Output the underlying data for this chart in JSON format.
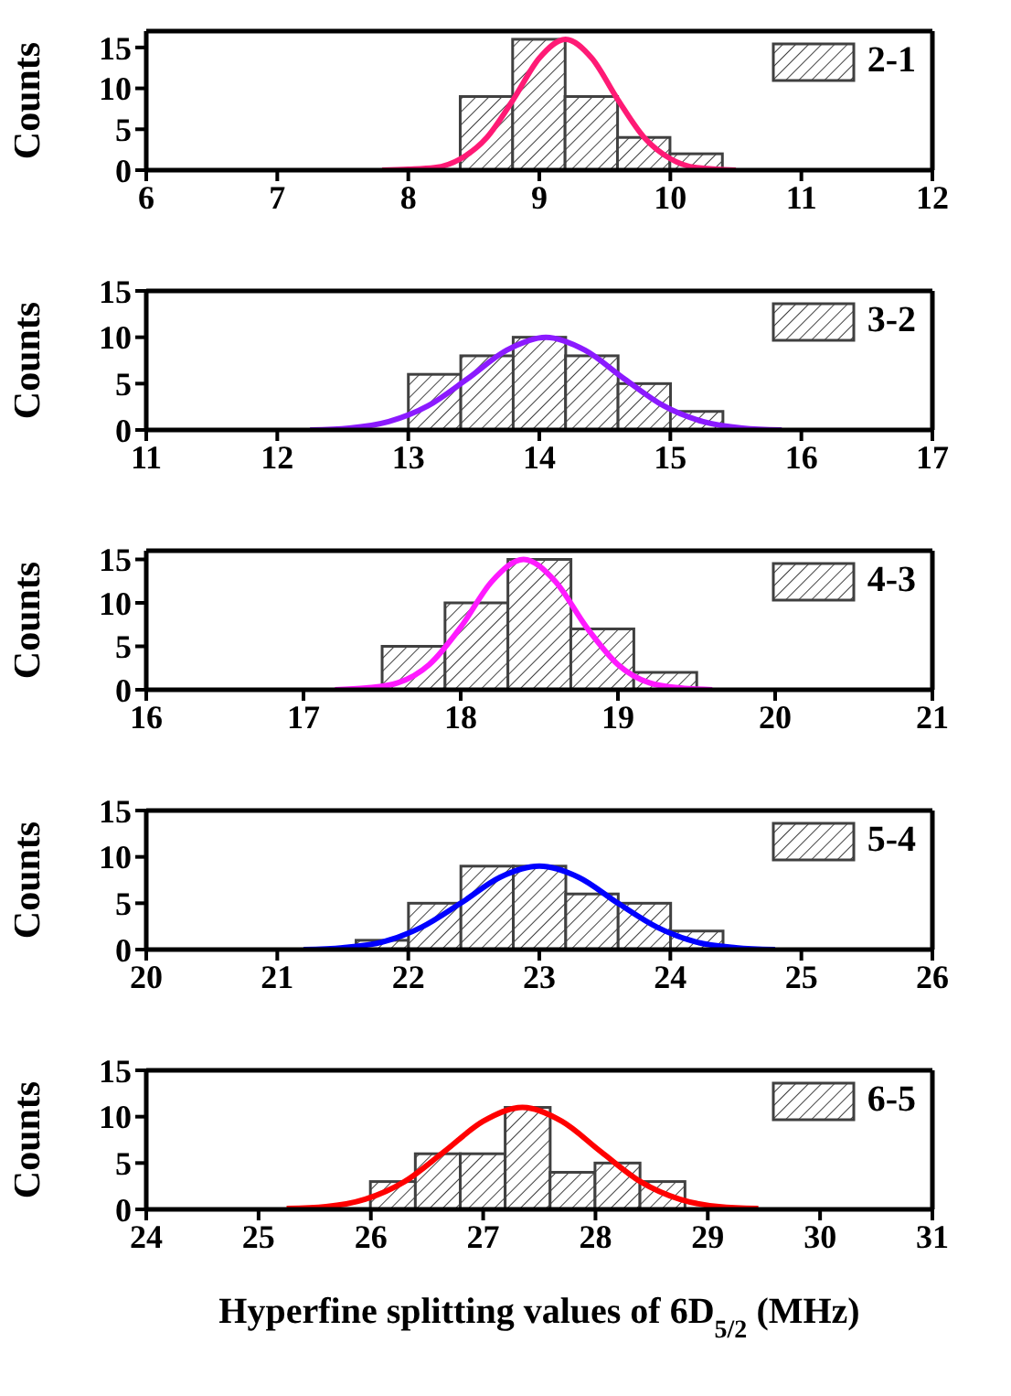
{
  "chart_data": [
    {
      "type": "histogram",
      "ylabel": "Counts",
      "xlim": [
        6,
        12
      ],
      "xticks": [
        6,
        7,
        8,
        9,
        10,
        11,
        12
      ],
      "ylim": [
        0,
        17
      ],
      "yticks": [
        0,
        5,
        10,
        15
      ],
      "grid": false,
      "legend": "top right",
      "series": [
        {
          "name": "2-1",
          "color": "#404040",
          "bins": [
            8.4,
            8.8,
            9.2,
            9.6,
            10.0,
            10.4
          ],
          "values": [
            9,
            16,
            9,
            4,
            2
          ]
        },
        {
          "type": "line",
          "color": "#ff1a75",
          "x": [
            7.8,
            8.0,
            8.2,
            8.4,
            8.6,
            8.8,
            9.0,
            9.2,
            9.4,
            9.6,
            9.8,
            10.0,
            10.2,
            10.5
          ],
          "values": [
            0.0,
            0.1,
            0.3,
            1.4,
            4.0,
            8.6,
            13.7,
            16,
            13.7,
            8.6,
            4.0,
            1.4,
            0.3,
            0.0
          ]
        }
      ]
    },
    {
      "type": "histogram",
      "ylabel": "Counts",
      "xlim": [
        11,
        17
      ],
      "xticks": [
        11,
        12,
        13,
        14,
        15,
        16,
        17
      ],
      "ylim": [
        0,
        15
      ],
      "yticks": [
        0,
        5,
        10,
        15
      ],
      "grid": false,
      "legend": "top right",
      "series": [
        {
          "name": "3-2",
          "color": "#404040",
          "bins": [
            13.0,
            13.4,
            13.8,
            14.2,
            14.6,
            15.0,
            15.4
          ],
          "values": [
            6,
            8,
            10,
            8,
            5,
            2
          ]
        },
        {
          "type": "line",
          "color": "#8b1aff",
          "x": [
            12.25,
            12.55,
            12.85,
            13.15,
            13.45,
            13.75,
            14.05,
            14.35,
            14.65,
            14.95,
            15.25,
            15.55,
            15.85
          ],
          "values": [
            0.0,
            0.2,
            0.9,
            2.6,
            5.5,
            8.6,
            10,
            8.6,
            5.5,
            2.6,
            0.9,
            0.2,
            0.0
          ]
        }
      ]
    },
    {
      "type": "histogram",
      "ylabel": "Counts",
      "xlim": [
        16,
        21
      ],
      "xticks": [
        16,
        17,
        18,
        19,
        20,
        21
      ],
      "ylim": [
        0,
        16
      ],
      "yticks": [
        0,
        5,
        10,
        15
      ],
      "grid": false,
      "legend": "top right",
      "series": [
        {
          "name": "4-3",
          "color": "#404040",
          "bins": [
            17.5,
            17.9,
            18.3,
            18.7,
            19.1,
            19.5
          ],
          "values": [
            5,
            10,
            15,
            7,
            2
          ]
        },
        {
          "type": "line",
          "color": "#ff1aff",
          "x": [
            17.2,
            17.4,
            17.6,
            17.8,
            18.0,
            18.2,
            18.4,
            18.6,
            18.8,
            19.0,
            19.2,
            19.4,
            19.6
          ],
          "values": [
            0.0,
            0.2,
            0.8,
            2.9,
            7.2,
            12.5,
            15,
            12.5,
            7.2,
            2.9,
            0.8,
            0.2,
            0.0
          ]
        }
      ]
    },
    {
      "type": "histogram",
      "ylabel": "Counts",
      "xlim": [
        20,
        26
      ],
      "xticks": [
        20,
        21,
        22,
        23,
        24,
        25,
        26
      ],
      "ylim": [
        0,
        15
      ],
      "yticks": [
        0,
        5,
        10,
        15
      ],
      "grid": false,
      "legend": "top right",
      "series": [
        {
          "name": "5-4",
          "color": "#404040",
          "bins": [
            21.6,
            22.0,
            22.4,
            22.8,
            23.2,
            23.6,
            24.0,
            24.4
          ],
          "values": [
            1,
            5,
            9,
            9,
            6,
            5,
            2
          ]
        },
        {
          "type": "line",
          "color": "#0000ff",
          "x": [
            21.2,
            21.5,
            21.8,
            22.1,
            22.4,
            22.7,
            23.0,
            23.3,
            23.6,
            23.9,
            24.2,
            24.5,
            24.8
          ],
          "values": [
            0.0,
            0.2,
            0.8,
            2.4,
            5.0,
            7.8,
            9,
            7.8,
            5.0,
            2.4,
            0.8,
            0.2,
            0.0
          ]
        }
      ]
    },
    {
      "type": "histogram",
      "ylabel": "Counts",
      "xlabel": "Hyperfine splitting values of 6D$_{5/2}$ (MHz)",
      "xlim": [
        24,
        31
      ],
      "xticks": [
        24,
        25,
        26,
        27,
        28,
        29,
        30,
        31
      ],
      "ylim": [
        0,
        15
      ],
      "yticks": [
        0,
        5,
        10,
        15
      ],
      "grid": false,
      "legend": "top right",
      "series": [
        {
          "name": "6-5",
          "color": "#404040",
          "bins": [
            26.0,
            26.4,
            26.8,
            27.2,
            27.6,
            28.0,
            28.4,
            28.8
          ],
          "values": [
            3,
            6,
            6,
            11,
            4,
            5,
            3
          ]
        },
        {
          "type": "line",
          "color": "#ff0000",
          "x": [
            25.25,
            25.6,
            25.95,
            26.3,
            26.65,
            27.0,
            27.35,
            27.7,
            28.05,
            28.4,
            28.75,
            29.1,
            29.45
          ],
          "values": [
            0.1,
            0.3,
            1.1,
            3.0,
            6.2,
            9.5,
            11,
            9.5,
            6.2,
            3.0,
            1.1,
            0.3,
            0.1
          ]
        }
      ]
    }
  ]
}
